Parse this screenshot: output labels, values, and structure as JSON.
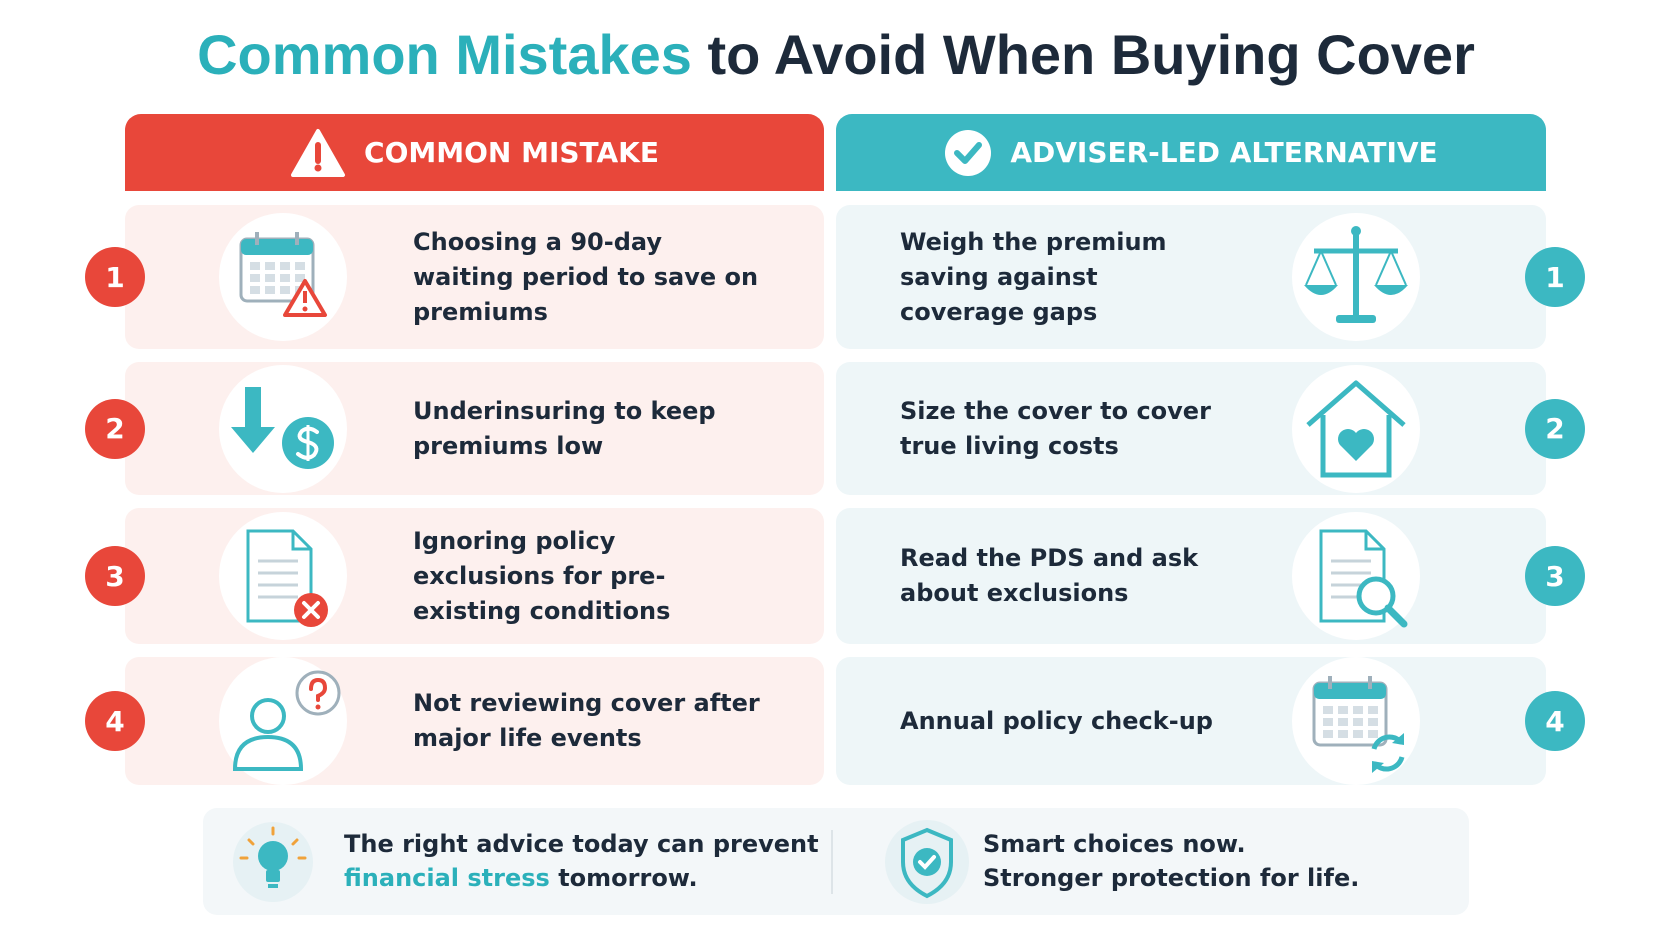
{
  "title": {
    "highlight": "Common Mistakes",
    "rest": "to Avoid When Buying Cover"
  },
  "headers": {
    "mistake": "COMMON MISTAKE",
    "alternative": "ADVISER-LED ALTERNATIVE"
  },
  "rows": [
    {
      "number": "1",
      "mistake": "Choosing a 90-day waiting period to save on premiums",
      "alternative": "Weigh the premium saving against coverage gaps"
    },
    {
      "number": "2",
      "mistake": "Underinsuring to keep premiums low",
      "alternative": "Size the cover to cover true living costs"
    },
    {
      "number": "3",
      "mistake": "Ignoring policy exclusions for pre-existing conditions",
      "alternative": "Read the PDS and ask about exclusions"
    },
    {
      "number": "4",
      "mistake": "Not reviewing cover after major life events",
      "alternative": "Annual policy check-up"
    }
  ],
  "footer": {
    "left": {
      "before": "The right advice today can prevent",
      "highlight": "financial stress",
      "after": "tomorrow."
    },
    "right": {
      "line1": "Smart choices now.",
      "line2": "Stronger protection for life."
    }
  }
}
